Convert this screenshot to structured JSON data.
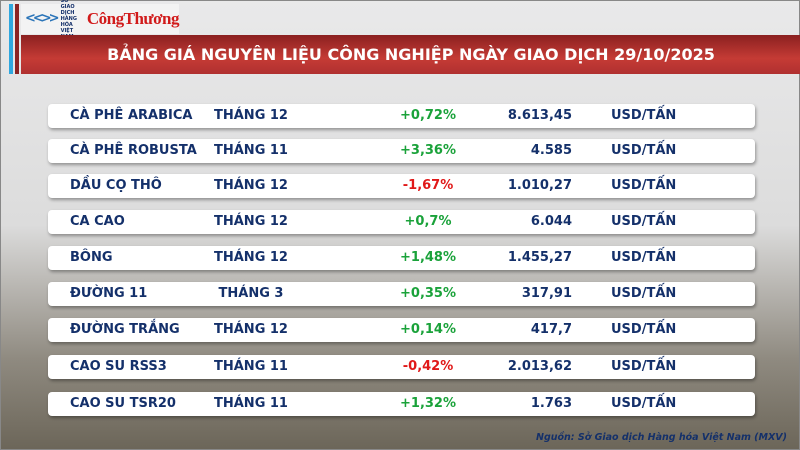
{
  "header": {
    "logo_text": "SỞ GIAO DỊCH HÀNG HÓA VIỆT NAM",
    "brand": "CôngThương",
    "title": "BẢNG GIÁ NGUYÊN LIỆU CÔNG NGHIỆP NGÀY GIAO DỊCH 29/10/2025"
  },
  "colors": {
    "up": "#1aa23a",
    "down": "#e01818",
    "text": "#14306a",
    "title_bar": "#c53b35"
  },
  "rows": [
    {
      "name": "CÀ PHÊ ARABICA",
      "month": "THÁNG 12",
      "change": "+0,72%",
      "dir": "up",
      "price": "8.613,45",
      "unit": "USD/TẤN"
    },
    {
      "name": "CÀ PHÊ ROBUSTA",
      "month": "THÁNG 11",
      "change": "+3,36%",
      "dir": "up",
      "price": "4.585",
      "unit": "USD/TẤN"
    },
    {
      "name": "DẦU CỌ THÔ",
      "month": "THÁNG 12",
      "change": "-1,67%",
      "dir": "down",
      "price": "1.010,27",
      "unit": "USD/TẤN"
    },
    {
      "name": "CA CAO",
      "month": "THÁNG 12",
      "change": "+0,7%",
      "dir": "up",
      "price": "6.044",
      "unit": "USD/TẤN"
    },
    {
      "name": "BÔNG",
      "month": "THÁNG 12",
      "change": "+1,48%",
      "dir": "up",
      "price": "1.455,27",
      "unit": "USD/TẤN"
    },
    {
      "name": "ĐƯỜNG 11",
      "month": "THÁNG 3",
      "change": "+0,35%",
      "dir": "up",
      "price": "317,91",
      "unit": "USD/TẤN"
    },
    {
      "name": "ĐƯỜNG TRẮNG",
      "month": "THÁNG 12",
      "change": "+0,14%",
      "dir": "up",
      "price": "417,7",
      "unit": "USD/TẤN"
    },
    {
      "name": "CAO SU RSS3",
      "month": "THÁNG 11",
      "change": "-0,42%",
      "dir": "down",
      "price": "2.013,62",
      "unit": "USD/TẤN"
    },
    {
      "name": "CAO SU TSR20",
      "month": "THÁNG 11",
      "change": "+1,32%",
      "dir": "up",
      "price": "1.763",
      "unit": "USD/TẤN"
    }
  ],
  "source": "Nguồn: Sở Giao dịch Hàng hóa Việt Nam (MXV)"
}
